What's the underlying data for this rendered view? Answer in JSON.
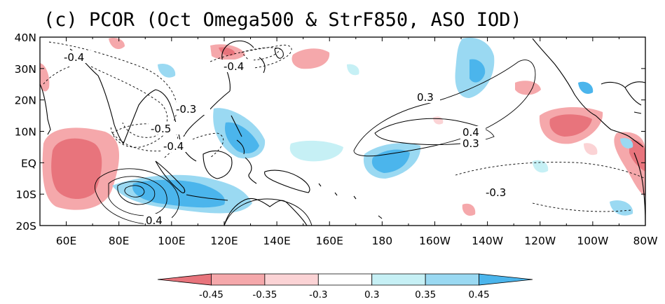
{
  "panel": {
    "title": "(c)  PCOR (Oct Omega500 & StrF850, ASO IOD)"
  },
  "map": {
    "projection": "cylindrical",
    "lon_range": [
      50,
      280
    ],
    "lat_range": [
      -20,
      40
    ],
    "x_tick_labels": [
      "60E",
      "80E",
      "100E",
      "120E",
      "140E",
      "160E",
      "180",
      "160W",
      "140W",
      "120W",
      "100W",
      "80W"
    ],
    "y_tick_labels": [
      "40N",
      "30N",
      "20N",
      "10N",
      "EQ",
      "10S",
      "20S"
    ],
    "contour_labels": [
      "-0.4",
      "-0.4",
      "-0.3",
      "-0.5",
      "-0.4",
      "0.3",
      "0.4",
      "0.3",
      "-0.3",
      "0.4"
    ],
    "shading_colors": {
      "neg_strong": "#e8747c",
      "neg_mid": "#f5a8ab",
      "neg_weak": "#fbd3d5",
      "pos_weak": "#c6f0f5",
      "pos_mid": "#9ad9f2",
      "pos_strong": "#4bb5ec"
    },
    "coastline_color": "#000000"
  },
  "colorbar": {
    "labels": [
      "-0.45",
      "-0.35",
      "-0.3",
      "0.3",
      "0.35",
      "0.45"
    ],
    "colors": [
      "#e8747c",
      "#f5a8ab",
      "#fbd3d5",
      "#ffffff",
      "#c6f0f5",
      "#9ad9f2",
      "#4bb5ec"
    ]
  }
}
